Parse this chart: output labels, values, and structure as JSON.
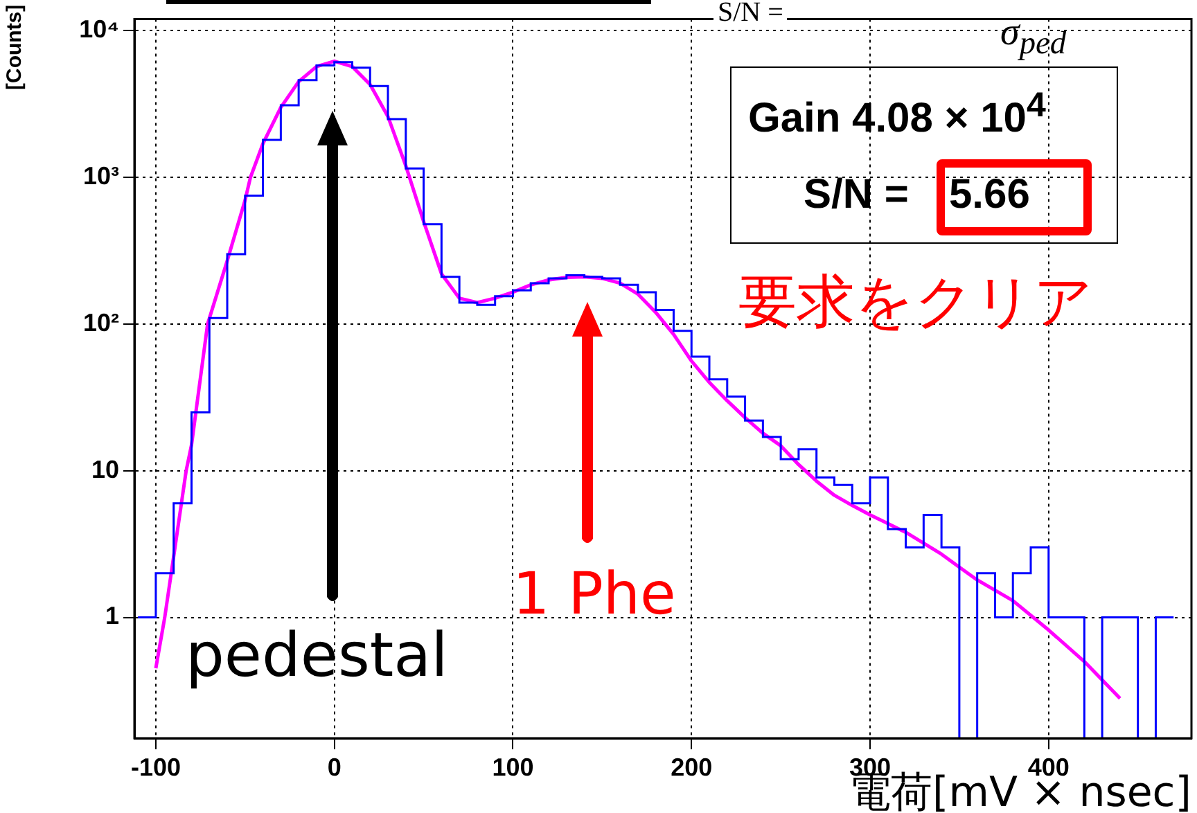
{
  "chart_data": {
    "type": "histogram",
    "xlabel": "電荷[mV × nsec]",
    "ylabel": "[Counts]",
    "xlim": [
      -112,
      480
    ],
    "xticks": [
      -100,
      0,
      100,
      200,
      300,
      400
    ],
    "ylim": [
      0.15,
      12000
    ],
    "yticks": [
      {
        "value": 1,
        "label": "1"
      },
      {
        "value": 10,
        "label": "10"
      },
      {
        "value": 100,
        "label": "10²"
      },
      {
        "value": 1000,
        "label": "10³"
      },
      {
        "value": 10000,
        "label": "10⁴"
      }
    ],
    "log": "y",
    "grid": true,
    "marker": "none",
    "series": [
      {
        "type": "histogram",
        "color": "#0000ff",
        "bins": [
          -110,
          -100,
          -90,
          -80,
          -70,
          -60,
          -50,
          -40,
          -30,
          -20,
          -10,
          0,
          10,
          20,
          30,
          40,
          50,
          60,
          70,
          80,
          90,
          100,
          110,
          120,
          130,
          140,
          150,
          160,
          170,
          180,
          190,
          200,
          210,
          220,
          230,
          240,
          250,
          260,
          270,
          280,
          290,
          300,
          310,
          320,
          330,
          340,
          350,
          360,
          370,
          380,
          390,
          400,
          410,
          420,
          430,
          440,
          450,
          460,
          470
        ],
        "values": [
          1,
          2,
          6,
          25,
          110,
          300,
          750,
          1800,
          3100,
          4600,
          5800,
          6100,
          5600,
          4200,
          2500,
          1150,
          480,
          210,
          140,
          135,
          155,
          170,
          190,
          205,
          215,
          210,
          205,
          185,
          165,
          125,
          90,
          60,
          42,
          32,
          22,
          17,
          12,
          14,
          9,
          8,
          6,
          9,
          4,
          3,
          5,
          3,
          null,
          2,
          1,
          2,
          3,
          1,
          1,
          null,
          1,
          1,
          null,
          1
        ]
      },
      {
        "type": "line",
        "color": "#ff00ff",
        "x": [
          -100,
          -95,
          -90,
          -83,
          -80,
          -71,
          -60,
          -50,
          -47,
          -40,
          -30,
          -20,
          -10,
          0,
          10,
          20,
          30,
          40,
          50,
          60,
          70,
          80,
          90,
          100,
          110,
          120,
          130,
          140,
          150,
          160,
          170,
          180,
          190,
          200,
          210,
          220,
          230,
          240,
          250,
          260,
          270,
          280,
          290,
          300,
          320,
          340,
          350,
          360,
          380,
          400,
          420,
          440
        ],
        "values": [
          0.45,
          1,
          2.6,
          10,
          15,
          100,
          270,
          700,
          1000,
          1700,
          3000,
          4500,
          5700,
          6200,
          5700,
          4300,
          2600,
          1200,
          500,
          220,
          150,
          140,
          150,
          165,
          185,
          200,
          208,
          210,
          205,
          190,
          160,
          120,
          85,
          56,
          40,
          30,
          23,
          18,
          14.8,
          11,
          8.5,
          6.8,
          5.8,
          5.0,
          3.8,
          2.7,
          2.2,
          1.8,
          1.3,
          0.82,
          0.5,
          0.28
        ]
      }
    ],
    "annotations": [
      "S/N =",
      "σ$_{ped}$",
      "Gain 4.08 × 10$^{4}$",
      "S/N =",
      "5.66",
      "要求をクリア",
      "pedestal",
      "1 Phe"
    ]
  }
}
